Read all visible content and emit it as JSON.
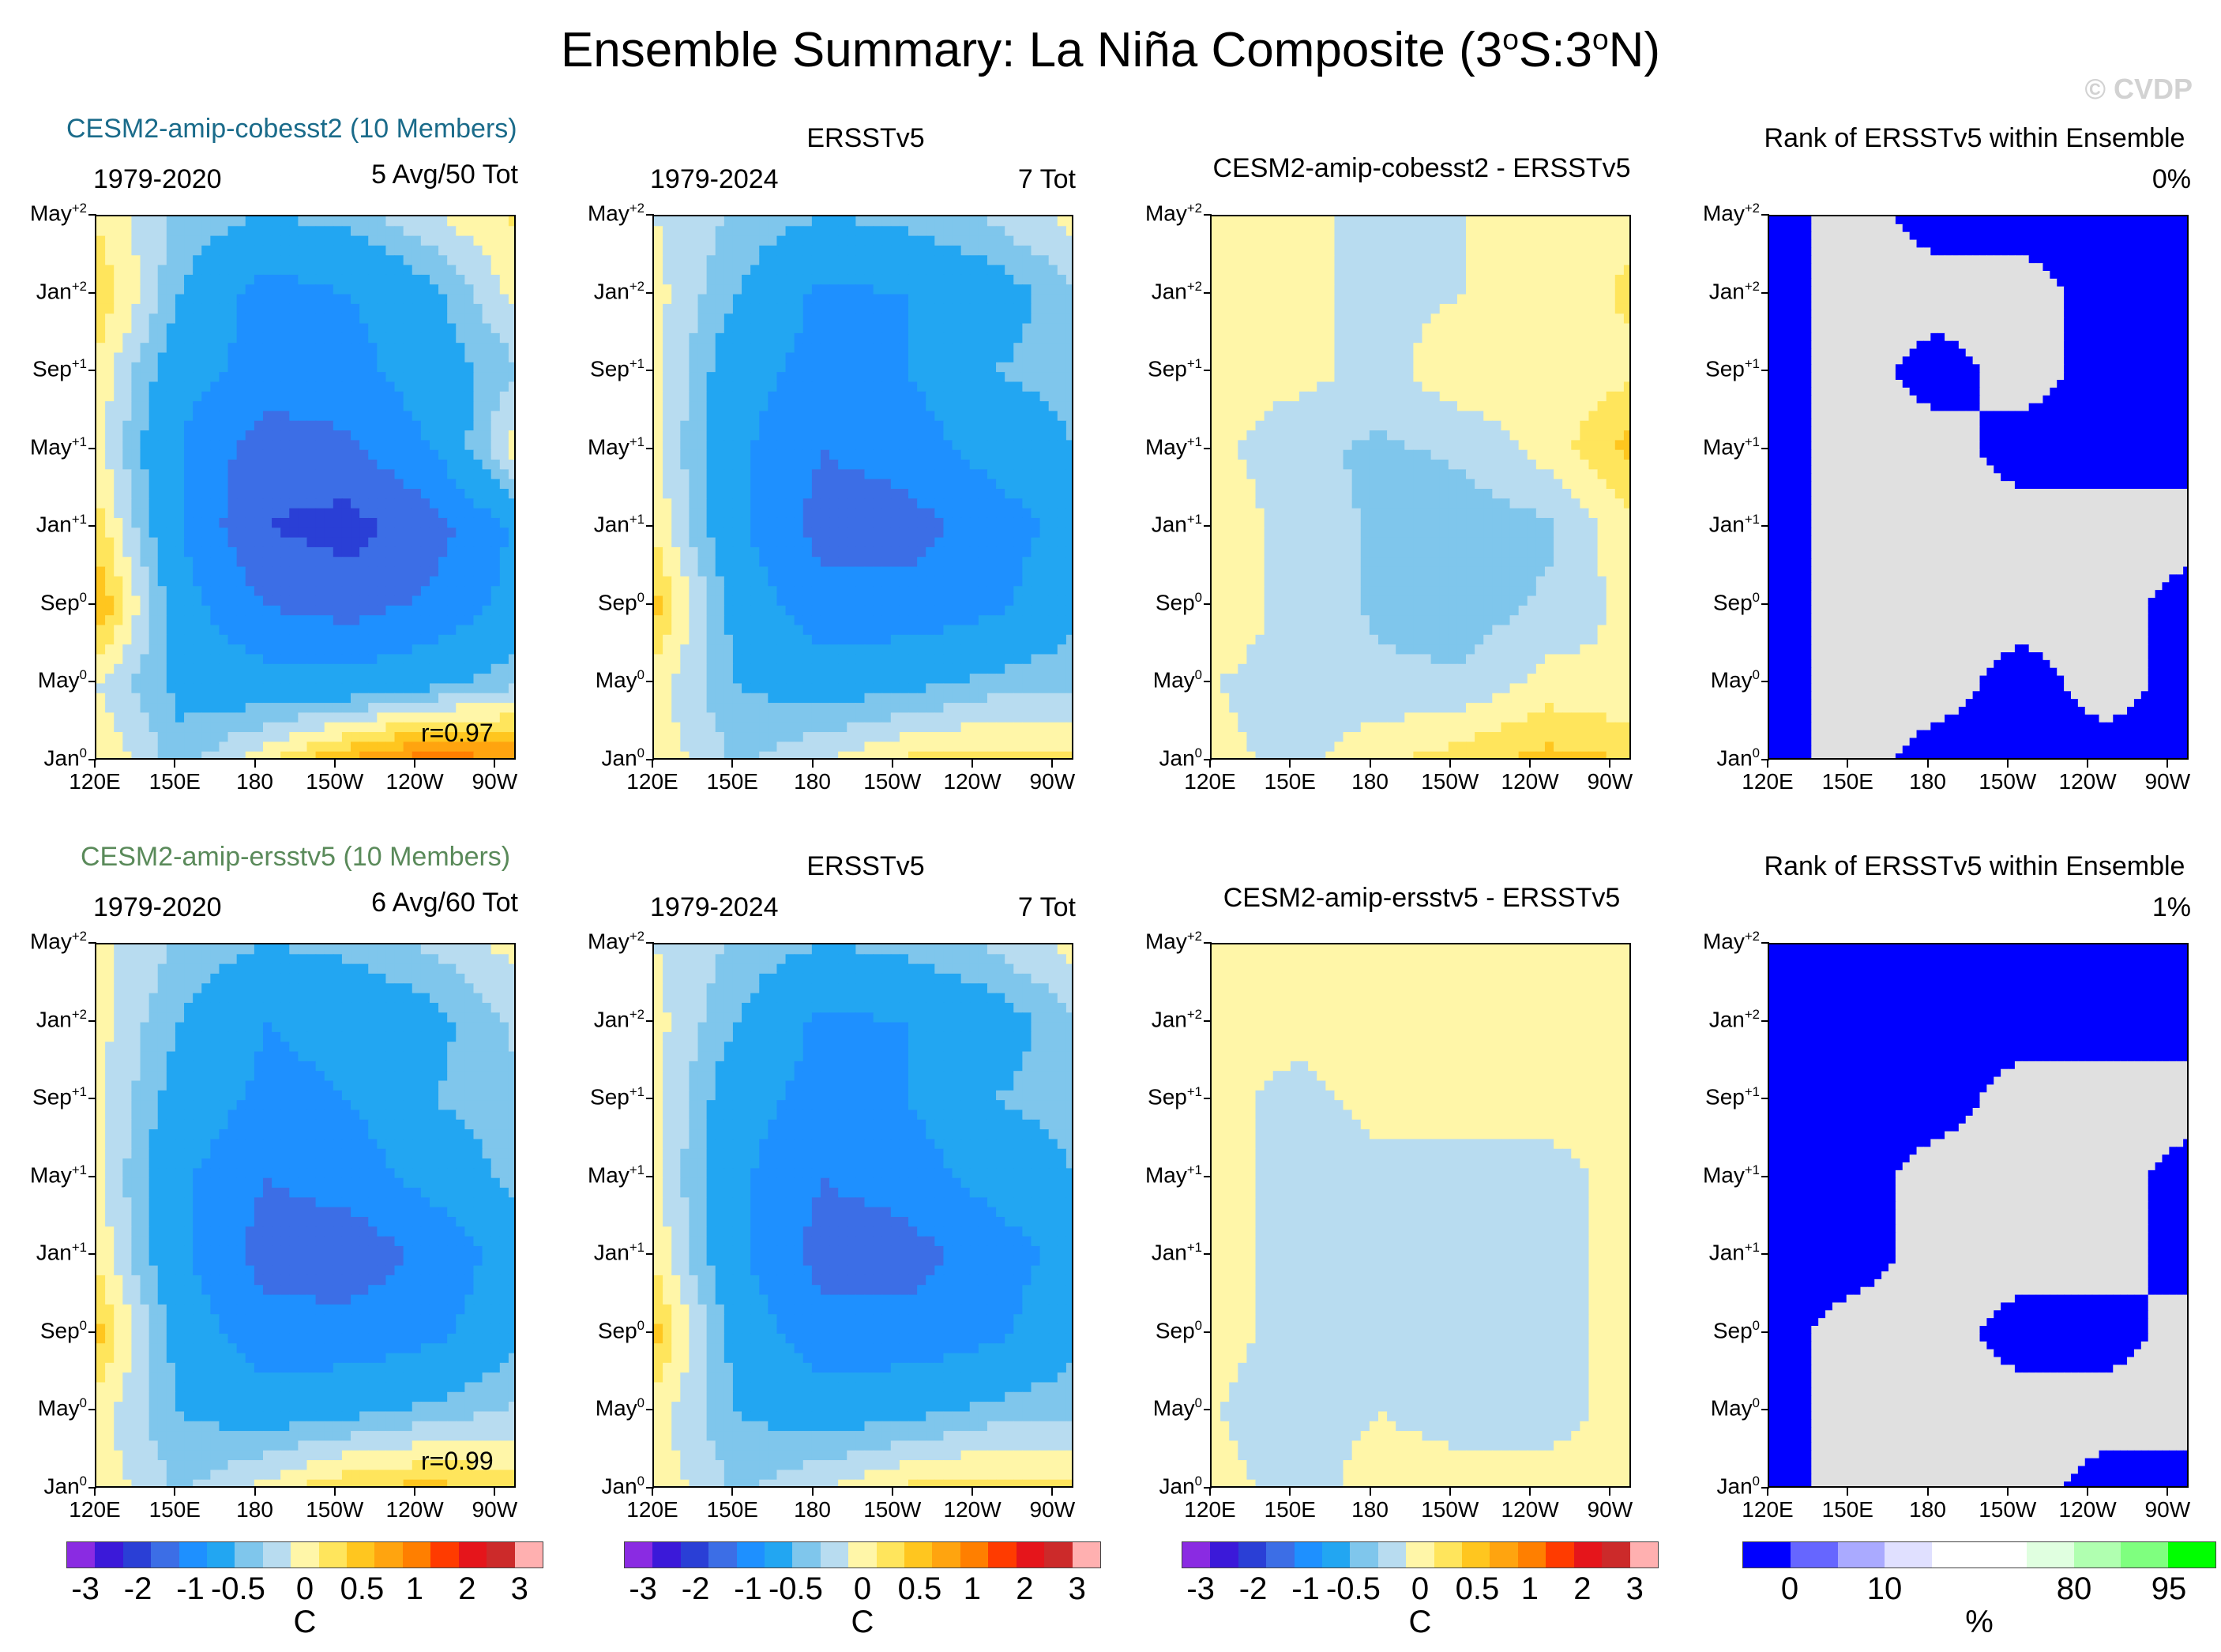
{
  "header": {
    "title": "Ensemble Summary: La Niña Composite (3",
    "title_full_parts": [
      "Ensemble Summary: La Niña Composite (3",
      "o",
      "S:3",
      "o",
      "N)"
    ],
    "credit": "© CVDP"
  },
  "axes": {
    "y_ticks": [
      {
        "m": "May",
        "s": "+2"
      },
      {
        "m": "Jan",
        "s": "+2"
      },
      {
        "m": "Sep",
        "s": "+1"
      },
      {
        "m": "May",
        "s": "+1"
      },
      {
        "m": "Jan",
        "s": "+1"
      },
      {
        "m": "Sep",
        "s": "0"
      },
      {
        "m": "May",
        "s": "0"
      },
      {
        "m": "Jan",
        "s": "0"
      }
    ],
    "x_ticks": [
      "120E",
      "150E",
      "180",
      "150W",
      "120W",
      "90W"
    ]
  },
  "colors": {
    "model1": "#1a6b8a",
    "model2": "#5a8a5a",
    "anomaly_scale": [
      "#8a2be2",
      "#3b19d9",
      "#2a3fd6",
      "#3c6ee6",
      "#1e90ff",
      "#22a6f2",
      "#7fc6ec",
      "#b8dcf0",
      "#fff6a8",
      "#ffe55c",
      "#ffc61f",
      "#ffa40f",
      "#ff7f00",
      "#ff3b00",
      "#e5151b",
      "#cc2a2a",
      "#ffb0b0"
    ],
    "rank_scale": [
      "#0000ff",
      "#6666ff",
      "#aaaaff",
      "#e0e0ff",
      "#ffffff",
      "#ffffff",
      "#e0ffe0",
      "#b0ffb0",
      "#7fff7f",
      "#00ff00"
    ]
  },
  "panels": {
    "row1": {
      "model_label": "CESM2-amip-cobesst2 (10 Members)",
      "p1": {
        "left": "1979-2020",
        "right": "5 Avg/50 Tot",
        "r": "r=0.97"
      },
      "p2": {
        "title": "ERSSTv5",
        "left": "1979-2024",
        "right": "7 Tot"
      },
      "p3": {
        "title": "CESM2-amip-cobesst2 - ERSSTv5"
      },
      "p4": {
        "title": "Rank of ERSSTv5 within Ensemble",
        "right": "0%"
      }
    },
    "row2": {
      "model_label": "CESM2-amip-ersstv5 (10 Members)",
      "p1": {
        "left": "1979-2020",
        "right": "6 Avg/60 Tot",
        "r": "r=0.99"
      },
      "p2": {
        "title": "ERSSTv5",
        "left": "1979-2024",
        "right": "7 Tot"
      },
      "p3": {
        "title": "CESM2-amip-ersstv5 - ERSSTv5"
      },
      "p4": {
        "title": "Rank of ERSSTv5 within Ensemble",
        "right": "1%"
      }
    }
  },
  "colorbars": {
    "anomaly_labels": [
      "-3",
      "-2",
      "-1",
      "-0.5",
      "0",
      "0.5",
      "1",
      "2",
      "3"
    ],
    "anomaly_unit": "C",
    "rank_labels": [
      "0",
      "10",
      "80",
      "95"
    ],
    "rank_unit": "%"
  },
  "chart_data": [
    {
      "type": "heatmap",
      "title": "CESM2-amip-cobesst2 (10 Members)",
      "x": [
        "120E",
        "150E",
        "180",
        "150W",
        "120W",
        "90W"
      ],
      "y": [
        "Jan0",
        "May0",
        "Sep0",
        "Jan+1",
        "May+1",
        "Sep+1",
        "Jan+2",
        "May+2"
      ],
      "zmin": -3,
      "zmax": 3,
      "units": "C",
      "values": [
        [
          0.3,
          -0.4,
          0.2,
          0.8,
          1.2,
          1.0
        ],
        [
          0.0,
          -0.6,
          -0.8,
          -0.8,
          -0.6,
          -0.3
        ],
        [
          0.8,
          -0.8,
          -1.5,
          -1.7,
          -1.4,
          -0.8
        ],
        [
          0.4,
          -1.0,
          -2.0,
          -2.2,
          -1.7,
          -0.9
        ],
        [
          0.1,
          -1.0,
          -1.8,
          -1.6,
          -1.0,
          0.2
        ],
        [
          0.2,
          -0.8,
          -1.2,
          -1.2,
          -0.7,
          -0.3
        ],
        [
          0.5,
          -0.5,
          -1.2,
          -1.0,
          -0.6,
          0.1
        ],
        [
          0.2,
          -0.3,
          -0.5,
          -0.4,
          0.0,
          0.3
        ]
      ],
      "annotation": "r=0.97"
    },
    {
      "type": "heatmap",
      "title": "ERSSTv5",
      "x": [
        "120E",
        "150E",
        "180",
        "150W",
        "120W",
        "90W"
      ],
      "y": [
        "Jan0",
        "May0",
        "Sep0",
        "Jan+1",
        "May+1",
        "Sep+1",
        "Jan+2",
        "May+2"
      ],
      "zmin": -3,
      "zmax": 3,
      "units": "C",
      "values": [
        [
          0.2,
          -0.3,
          0.0,
          0.3,
          0.4,
          0.3
        ],
        [
          0.1,
          -0.5,
          -0.7,
          -0.6,
          -0.4,
          -0.3
        ],
        [
          0.6,
          -0.7,
          -1.3,
          -1.3,
          -1.1,
          -0.6
        ],
        [
          0.2,
          -0.9,
          -1.7,
          -1.7,
          -1.3,
          -0.8
        ],
        [
          0.1,
          -0.9,
          -1.5,
          -1.3,
          -0.8,
          -0.5
        ],
        [
          0.1,
          -0.8,
          -1.2,
          -1.0,
          -0.5,
          -0.4
        ],
        [
          0.1,
          -0.5,
          -1.1,
          -1.0,
          -0.7,
          -0.3
        ],
        [
          0.0,
          -0.3,
          -0.5,
          -0.4,
          -0.2,
          0.1
        ]
      ]
    },
    {
      "type": "heatmap",
      "title": "CESM2-amip-cobesst2 - ERSSTv5",
      "x": [
        "120E",
        "150E",
        "180",
        "150W",
        "120W",
        "90W"
      ],
      "y": [
        "Jan0",
        "May0",
        "Sep0",
        "Jan+1",
        "May+1",
        "Sep+1",
        "Jan+2",
        "May+2"
      ],
      "zmin": -3,
      "zmax": 3,
      "units": "C",
      "values": [
        [
          0.1,
          -0.1,
          0.2,
          0.4,
          0.6,
          0.5
        ],
        [
          0.0,
          -0.1,
          -0.2,
          -0.2,
          0.1,
          0.0
        ],
        [
          0.2,
          -0.1,
          -0.3,
          -0.4,
          -0.2,
          0.1
        ],
        [
          0.2,
          -0.1,
          -0.3,
          -0.4,
          -0.3,
          0.2
        ],
        [
          0.1,
          -0.2,
          -0.3,
          -0.2,
          0.1,
          0.6
        ],
        [
          0.1,
          0.1,
          -0.1,
          0.2,
          0.1,
          0.2
        ],
        [
          0.2,
          0.1,
          -0.1,
          0.0,
          0.1,
          0.3
        ],
        [
          0.2,
          0.0,
          0.0,
          0.0,
          0.1,
          0.2
        ]
      ]
    },
    {
      "type": "heatmap",
      "title": "Rank of ERSSTv5 within Ensemble",
      "x": [
        "120E",
        "150E",
        "180",
        "150W",
        "120W",
        "90W"
      ],
      "y": [
        "Jan0",
        "May0",
        "Sep0",
        "Jan+1",
        "May+1",
        "Sep+1",
        "Jan+2",
        "May+2"
      ],
      "zmin": 0,
      "zmax": 100,
      "units": "%",
      "values": [
        [
          0,
          50,
          0,
          0,
          0,
          0
        ],
        [
          0,
          50,
          50,
          0,
          50,
          0
        ],
        [
          0,
          50,
          50,
          50,
          50,
          0
        ],
        [
          0,
          50,
          50,
          50,
          50,
          50
        ],
        [
          0,
          50,
          50,
          0,
          0,
          0
        ],
        [
          0,
          50,
          0,
          50,
          0,
          0
        ],
        [
          0,
          50,
          50,
          50,
          0,
          0
        ],
        [
          0,
          50,
          0,
          0,
          0,
          0
        ]
      ],
      "annotation": "0%"
    },
    {
      "type": "heatmap",
      "title": "CESM2-amip-ersstv5 (10 Members)",
      "x": [
        "120E",
        "150E",
        "180",
        "150W",
        "120W",
        "90W"
      ],
      "y": [
        "Jan0",
        "May0",
        "Sep0",
        "Jan+1",
        "May+1",
        "Sep+1",
        "Jan+2",
        "May+2"
      ],
      "zmin": -3,
      "zmax": 3,
      "units": "C",
      "values": [
        [
          0.2,
          -0.3,
          0.1,
          0.5,
          0.6,
          0.4
        ],
        [
          0.1,
          -0.5,
          -0.7,
          -0.6,
          -0.4,
          -0.2
        ],
        [
          0.6,
          -0.7,
          -1.3,
          -1.3,
          -1.1,
          -0.6
        ],
        [
          0.2,
          -0.9,
          -1.7,
          -1.8,
          -1.4,
          -0.7
        ],
        [
          0.1,
          -0.9,
          -1.5,
          -1.3,
          -0.8,
          -0.4
        ],
        [
          0.1,
          -0.7,
          -1.1,
          -1.0,
          -0.5,
          -0.3
        ],
        [
          0.1,
          -0.5,
          -1.0,
          -0.9,
          -0.6,
          -0.2
        ],
        [
          0.1,
          -0.3,
          -0.5,
          -0.4,
          -0.2,
          0.1
        ]
      ],
      "annotation": "r=0.99"
    },
    {
      "type": "heatmap",
      "title": "ERSSTv5",
      "x": [
        "120E",
        "150E",
        "180",
        "150W",
        "120W",
        "90W"
      ],
      "y": [
        "Jan0",
        "May0",
        "Sep0",
        "Jan+1",
        "May+1",
        "Sep+1",
        "Jan+2",
        "May+2"
      ],
      "zmin": -3,
      "zmax": 3,
      "units": "C",
      "values": [
        [
          0.2,
          -0.3,
          0.0,
          0.3,
          0.4,
          0.3
        ],
        [
          0.1,
          -0.5,
          -0.7,
          -0.6,
          -0.4,
          -0.3
        ],
        [
          0.6,
          -0.7,
          -1.3,
          -1.3,
          -1.1,
          -0.6
        ],
        [
          0.2,
          -0.9,
          -1.7,
          -1.7,
          -1.3,
          -0.8
        ],
        [
          0.1,
          -0.9,
          -1.5,
          -1.3,
          -0.8,
          -0.5
        ],
        [
          0.1,
          -0.8,
          -1.2,
          -1.0,
          -0.5,
          -0.4
        ],
        [
          0.1,
          -0.5,
          -1.1,
          -1.0,
          -0.7,
          -0.3
        ],
        [
          0.0,
          -0.3,
          -0.5,
          -0.4,
          -0.2,
          0.1
        ]
      ]
    },
    {
      "type": "heatmap",
      "title": "CESM2-amip-ersstv5 - ERSSTv5",
      "x": [
        "120E",
        "150E",
        "180",
        "150W",
        "120W",
        "90W"
      ],
      "y": [
        "Jan0",
        "May0",
        "Sep0",
        "Jan+1",
        "May+1",
        "Sep+1",
        "Jan+2",
        "May+2"
      ],
      "zmin": -3,
      "zmax": 3,
      "units": "C",
      "values": [
        [
          0.1,
          -0.1,
          0.1,
          0.1,
          0.1,
          0.1
        ],
        [
          0.0,
          -0.1,
          0.0,
          -0.1,
          -0.1,
          0.1
        ],
        [
          0.1,
          -0.1,
          -0.1,
          -0.1,
          -0.1,
          0.1
        ],
        [
          0.1,
          -0.1,
          -0.1,
          -0.1,
          -0.1,
          0.1
        ],
        [
          0.1,
          -0.1,
          -0.1,
          -0.1,
          -0.1,
          0.1
        ],
        [
          0.1,
          -0.1,
          0.1,
          0.1,
          0.1,
          0.1
        ],
        [
          0.1,
          0.1,
          0.1,
          0.1,
          0.1,
          0.1
        ],
        [
          0.1,
          0.1,
          0.1,
          0.1,
          0.1,
          0.1
        ]
      ]
    },
    {
      "type": "heatmap",
      "title": "Rank of ERSSTv5 within Ensemble",
      "x": [
        "120E",
        "150E",
        "180",
        "150W",
        "120W",
        "90W"
      ],
      "y": [
        "Jan0",
        "May0",
        "Sep0",
        "Jan+1",
        "May+1",
        "Sep+1",
        "Jan+2",
        "May+2"
      ],
      "zmin": 0,
      "zmax": 100,
      "units": "%",
      "values": [
        [
          0,
          50,
          50,
          50,
          0,
          0
        ],
        [
          0,
          50,
          50,
          50,
          50,
          50
        ],
        [
          0,
          50,
          50,
          0,
          0,
          50
        ],
        [
          0,
          0,
          50,
          50,
          50,
          0
        ],
        [
          0,
          0,
          50,
          50,
          50,
          0
        ],
        [
          0,
          0,
          0,
          50,
          50,
          50
        ],
        [
          0,
          0,
          0,
          0,
          0,
          0
        ],
        [
          0,
          0,
          0,
          0,
          0,
          0
        ]
      ],
      "annotation": "1%"
    }
  ]
}
